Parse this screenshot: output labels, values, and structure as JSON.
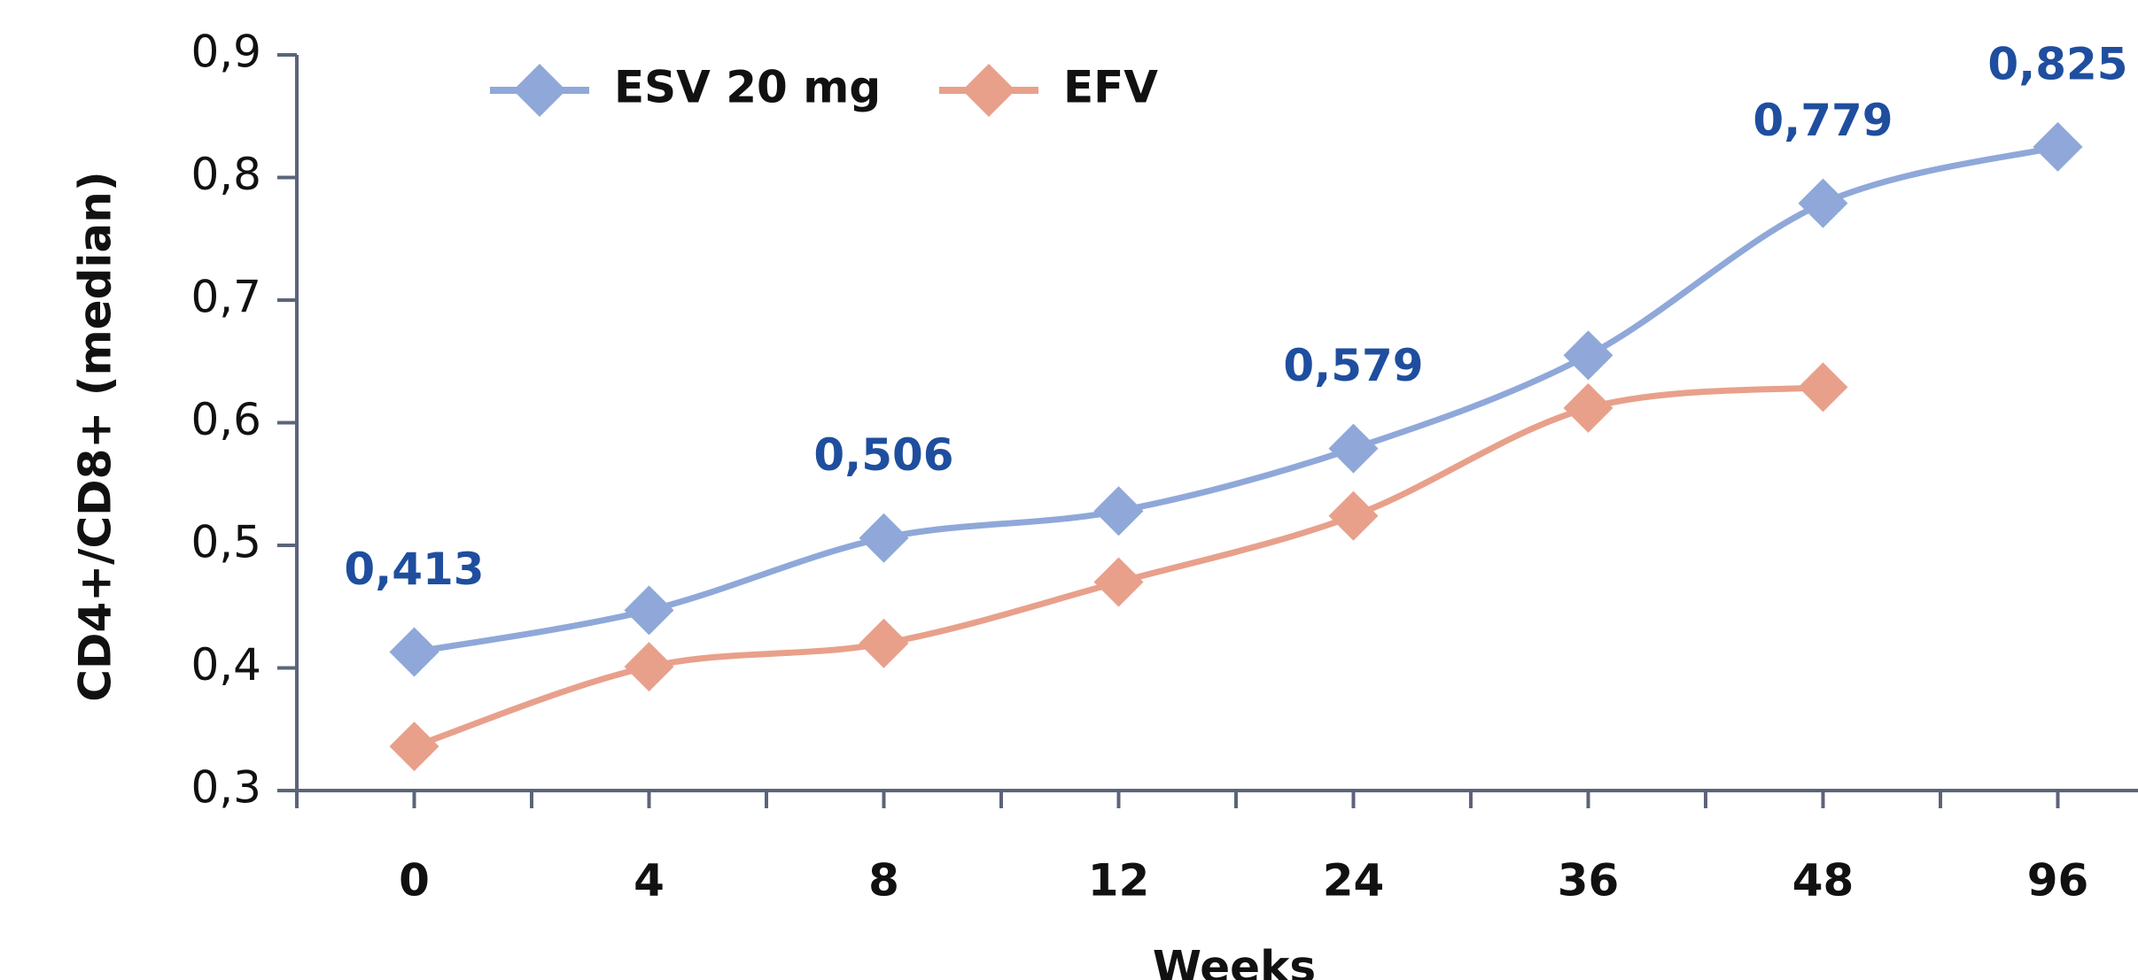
{
  "chart_data": {
    "type": "line",
    "categories": [
      "0",
      "4",
      "8",
      "12",
      "24",
      "36",
      "48",
      "96"
    ],
    "series": [
      {
        "name": "ESV 20 mg",
        "color": "#8fa8d9",
        "values": [
          0.413,
          0.447,
          0.506,
          0.528,
          0.579,
          0.655,
          0.779,
          0.825
        ],
        "value_labels": [
          "0,413",
          null,
          "0,506",
          null,
          "0,579",
          null,
          "0,779",
          "0,825"
        ]
      },
      {
        "name": "EFV",
        "color": "#e8a08b",
        "values": [
          0.336,
          0.401,
          0.42,
          0.47,
          0.524,
          0.612,
          0.629,
          null
        ]
      }
    ],
    "xlabel": "Weeks",
    "ylabel": "CD4+/CD8+ (median)",
    "ylim": [
      0.3,
      0.9
    ],
    "yticks": [
      {
        "value": 0.3,
        "label": "0,3"
      },
      {
        "value": 0.4,
        "label": "0,4"
      },
      {
        "value": 0.5,
        "label": "0,5"
      },
      {
        "value": 0.6,
        "label": "0,6"
      },
      {
        "value": 0.7,
        "label": "0,7"
      },
      {
        "value": 0.8,
        "label": "0,8"
      },
      {
        "value": 0.9,
        "label": "0,9"
      }
    ],
    "label_color": "#1f4e9f",
    "legend": "top"
  }
}
